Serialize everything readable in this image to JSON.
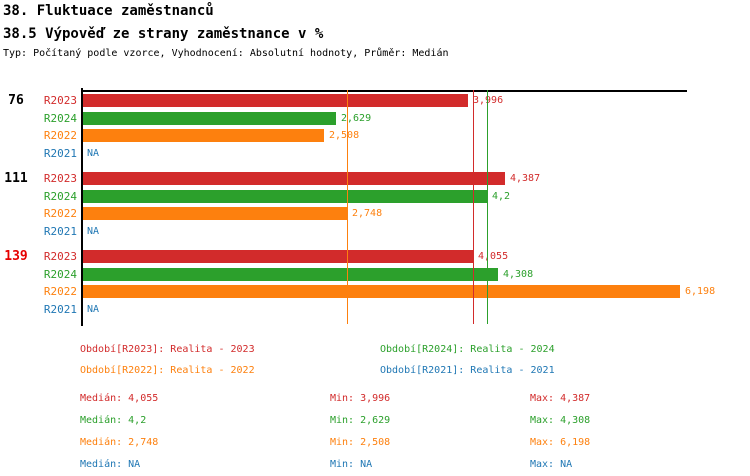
{
  "header": {
    "title": "38. Fluktuace zaměstnanců",
    "subtitle": "38.5 Výpověď ze strany zaměstnance v %",
    "meta": "Typ: Počítaný podle vzorce, Vyhodnocení: Absolutní hodnoty, Průměr: Medián"
  },
  "chart_data": {
    "type": "bar",
    "orientation": "horizontal",
    "unit": "%",
    "xlim": [
      0,
      6.28
    ],
    "grid": false,
    "na_text": "NA",
    "series": [
      {
        "id": "R2023",
        "label": "R2023",
        "color": "#d22b2b",
        "legend_label": "Období[R2023]: Realita - 2023",
        "median": 4.055,
        "stats": {
          "median": "4,055",
          "min": "3,996",
          "max": "4,387"
        }
      },
      {
        "id": "R2024",
        "label": "R2024",
        "color": "#2ca02c",
        "legend_label": "Období[R2024]: Realita - 2024",
        "median": 4.2,
        "stats": {
          "median": "4,2",
          "min": "2,629",
          "max": "4,308"
        }
      },
      {
        "id": "R2022",
        "label": "R2022",
        "color": "#fd800e",
        "legend_label": "Období[R2022]: Realita - 2022",
        "median": 2.748,
        "stats": {
          "median": "2,748",
          "min": "2,508",
          "max": "6,198"
        }
      },
      {
        "id": "R2021",
        "label": "R2021",
        "color": "#1f77b4",
        "legend_label": "Období[R2021]: Realita - 2021",
        "median": null,
        "stats": {
          "median": "NA",
          "min": "NA",
          "max": "NA"
        }
      }
    ],
    "groups": [
      {
        "label": "76",
        "label_color": "#000000",
        "values": [
          3.996,
          2.629,
          2.508,
          null
        ],
        "value_labels": [
          "3,996",
          "2,629",
          "2,508",
          "NA"
        ]
      },
      {
        "label": "111",
        "label_color": "#000000",
        "values": [
          4.387,
          4.2,
          2.748,
          null
        ],
        "value_labels": [
          "4,387",
          "4,2",
          "2,748",
          "NA"
        ]
      },
      {
        "label": "139",
        "label_color": "#e60000",
        "values": [
          4.055,
          4.308,
          6.198,
          null
        ],
        "value_labels": [
          "4,055",
          "4,308",
          "6,198",
          "NA"
        ]
      }
    ]
  },
  "stats_labels": {
    "median": "Medián",
    "min": "Min",
    "max": "Max"
  }
}
